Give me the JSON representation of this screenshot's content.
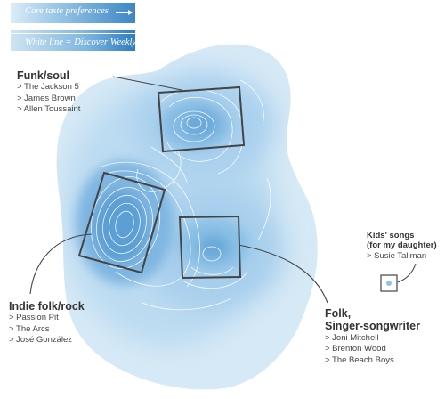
{
  "legend": {
    "core_label": "Core taste preferences",
    "white_line_label": "White line = Discover Weekly songs"
  },
  "clusters": {
    "funk_soul": {
      "title": "Funk/soul",
      "items": [
        "> The Jackson 5",
        "> James Brown",
        "> Allen Toussaint"
      ]
    },
    "indie_folk_rock": {
      "title": "Indie folk/rock",
      "items": [
        "> Passion Pit",
        "> The Arcs",
        "> José González"
      ]
    },
    "folk_singer_songwriter": {
      "title_line1": "Folk,",
      "title_line2": "Singer-songwriter",
      "items": [
        "> Joni Mitchell",
        "> Brenton Wood",
        "> The Beach Boys"
      ]
    },
    "kids_songs": {
      "title_line1": "Kids' songs",
      "title_line2": "(for my daughter)",
      "items": [
        "> Susie Tallman"
      ]
    }
  },
  "colors": {
    "blob_outer": "#d7eaf7",
    "blob_core": "#3f86c4",
    "contour_line": "#ffffff",
    "box_stroke": "#444444",
    "leader_line": "#444444",
    "text": "#333333"
  }
}
